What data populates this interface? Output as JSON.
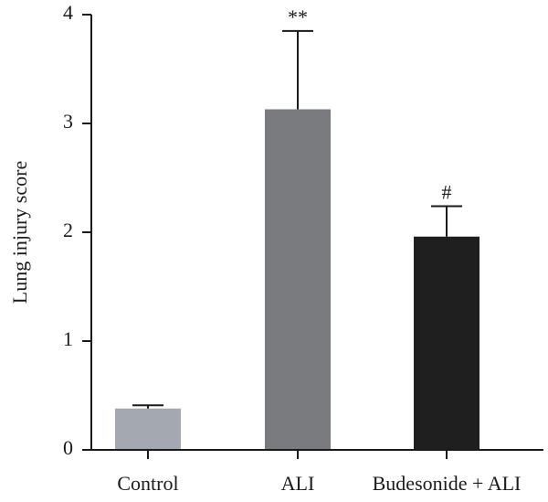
{
  "chart_data": {
    "type": "bar",
    "categories": [
      "Control",
      "ALI",
      "Budesonide + ALI"
    ],
    "values": [
      0.38,
      3.13,
      1.96
    ],
    "errors": [
      0.03,
      0.72,
      0.28
    ],
    "annotations": [
      "",
      "**",
      "#"
    ],
    "colors": [
      "#a3a8b1",
      "#7a7b7f",
      "#1f1f1f"
    ],
    "ylabel": "Lung injury score",
    "ylim": [
      0,
      4
    ],
    "yticks": [
      0,
      1,
      2,
      3,
      4
    ]
  }
}
